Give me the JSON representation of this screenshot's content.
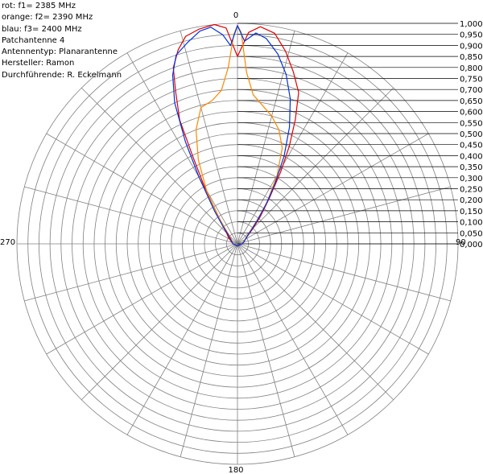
{
  "legend": {
    "line1": "rot: f1=  2385 MHz",
    "line2": "orange: f2=  2390 MHz",
    "line3": "blau: f3=  2400 MHz",
    "line4": "Patchantenne 4",
    "line5": "Antennentyp: Planarantenne",
    "line6": "Hersteller: Ramon",
    "line7": "Durchführende: R. Eckelmann"
  },
  "chart_data": {
    "type": "polar",
    "angle_labels": {
      "top": "0",
      "right": "90",
      "bottom": "180",
      "left": "270"
    },
    "radial_ticks": [
      "0,000",
      "0,050",
      "0,100",
      "0,150",
      "0,200",
      "0,250",
      "0,300",
      "0,350",
      "0,400",
      "0,450",
      "0,500",
      "0,550",
      "0,600",
      "0,650",
      "0,700",
      "0,750",
      "0,800",
      "0,850",
      "0,900",
      "0,950",
      "1,000"
    ],
    "rlim": [
      0,
      1
    ],
    "spoke_step_deg": 15,
    "series": [
      {
        "color": "#e00000",
        "points": [
          [
            -45,
            0.07
          ],
          [
            -40,
            0.1
          ],
          [
            -35,
            0.15
          ],
          [
            -30,
            0.3
          ],
          [
            -27,
            0.45
          ],
          [
            -25,
            0.62
          ],
          [
            -22,
            0.75
          ],
          [
            -20,
            0.85
          ],
          [
            -17,
            0.92
          ],
          [
            -14,
            0.97
          ],
          [
            -10,
            0.99
          ],
          [
            -6,
            1.0
          ],
          [
            -3,
            0.98
          ],
          [
            0,
            0.85
          ],
          [
            3,
            0.96
          ],
          [
            6,
            0.99
          ],
          [
            10,
            0.97
          ],
          [
            14,
            0.9
          ],
          [
            18,
            0.82
          ],
          [
            22,
            0.74
          ],
          [
            25,
            0.62
          ],
          [
            28,
            0.5
          ],
          [
            31,
            0.38
          ],
          [
            35,
            0.25
          ],
          [
            40,
            0.16
          ],
          [
            45,
            0.1
          ],
          [
            55,
            0.05
          ],
          [
            70,
            0.03
          ],
          [
            90,
            0.02
          ],
          [
            180,
            0.01
          ],
          [
            270,
            0.02
          ],
          [
            290,
            0.03
          ],
          [
            305,
            0.05
          ],
          [
            -45,
            0.07
          ]
        ]
      },
      {
        "color": "#ff8800",
        "points": [
          [
            -45,
            0.05
          ],
          [
            -40,
            0.08
          ],
          [
            -35,
            0.15
          ],
          [
            -30,
            0.28
          ],
          [
            -25,
            0.42
          ],
          [
            -20,
            0.55
          ],
          [
            -15,
            0.64
          ],
          [
            -10,
            0.66
          ],
          [
            -6,
            0.7
          ],
          [
            -3,
            0.8
          ],
          [
            -1,
            0.95
          ],
          [
            0,
            0.99
          ],
          [
            1,
            0.96
          ],
          [
            3,
            0.78
          ],
          [
            6,
            0.68
          ],
          [
            10,
            0.64
          ],
          [
            15,
            0.6
          ],
          [
            20,
            0.55
          ],
          [
            25,
            0.48
          ],
          [
            30,
            0.36
          ],
          [
            35,
            0.24
          ],
          [
            40,
            0.14
          ],
          [
            45,
            0.08
          ],
          [
            60,
            0.04
          ],
          [
            90,
            0.02
          ],
          [
            180,
            0.01
          ],
          [
            270,
            0.02
          ],
          [
            300,
            0.03
          ],
          [
            -45,
            0.05
          ]
        ]
      },
      {
        "color": "#0030e0",
        "points": [
          [
            -45,
            0.06
          ],
          [
            -40,
            0.1
          ],
          [
            -35,
            0.18
          ],
          [
            -30,
            0.35
          ],
          [
            -27,
            0.52
          ],
          [
            -24,
            0.7
          ],
          [
            -21,
            0.82
          ],
          [
            -18,
            0.9
          ],
          [
            -14,
            0.94
          ],
          [
            -10,
            0.98
          ],
          [
            -7,
            0.99
          ],
          [
            -4,
            0.95
          ],
          [
            -2,
            0.9
          ],
          [
            0,
            0.99
          ],
          [
            2,
            0.92
          ],
          [
            5,
            0.96
          ],
          [
            8,
            0.94
          ],
          [
            12,
            0.88
          ],
          [
            16,
            0.8
          ],
          [
            20,
            0.7
          ],
          [
            24,
            0.58
          ],
          [
            28,
            0.45
          ],
          [
            32,
            0.32
          ],
          [
            36,
            0.22
          ],
          [
            40,
            0.14
          ],
          [
            45,
            0.09
          ],
          [
            55,
            0.05
          ],
          [
            75,
            0.03
          ],
          [
            90,
            0.02
          ],
          [
            180,
            0.01
          ],
          [
            270,
            0.02
          ],
          [
            295,
            0.03
          ],
          [
            -45,
            0.06
          ]
        ]
      }
    ]
  }
}
